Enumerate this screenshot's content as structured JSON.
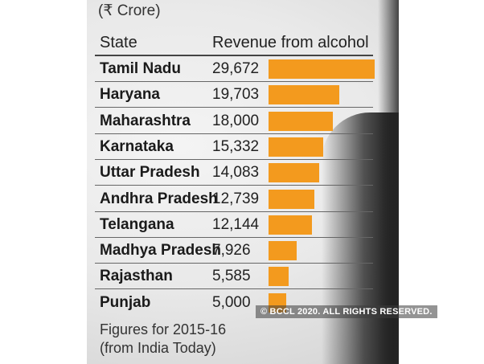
{
  "chart_data": {
    "type": "bar",
    "orientation": "horizontal",
    "unit": "(₹ Crore)",
    "column_headers": {
      "category": "State",
      "value": "Revenue from alcohol"
    },
    "rows": [
      {
        "state": "Tamil Nadu",
        "value": 29672,
        "label": "29,672"
      },
      {
        "state": "Haryana",
        "value": 19703,
        "label": "19,703"
      },
      {
        "state": "Maharashtra",
        "value": 18000,
        "label": "18,000"
      },
      {
        "state": "Karnataka",
        "value": 15332,
        "label": "15,332"
      },
      {
        "state": "Uttar Pradesh",
        "value": 14083,
        "label": "14,083"
      },
      {
        "state": "Andhra Pradesh",
        "value": 12739,
        "label": "12,739"
      },
      {
        "state": "Telangana",
        "value": 12144,
        "label": "12,144"
      },
      {
        "state": "Madhya Pradesh",
        "value": 7926,
        "label": "7,926"
      },
      {
        "state": "Rajasthan",
        "value": 5585,
        "label": "5,585"
      },
      {
        "state": "Punjab",
        "value": 5000,
        "label": "5,000"
      }
    ],
    "xlim": [
      0,
      29672
    ],
    "bar_color": "#f39a1e"
  },
  "footnote": {
    "line1": "Figures for 2015-16",
    "line2": "(from India Today)"
  },
  "watermark": "© BCCL 2020. ALL RIGHTS RESERVED."
}
